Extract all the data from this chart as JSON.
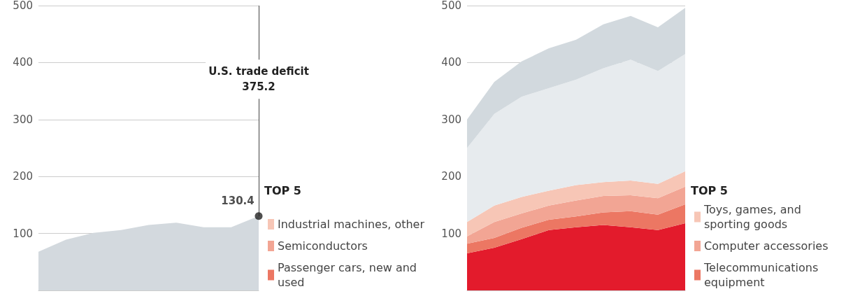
{
  "chart_data": [
    {
      "type": "area",
      "categories": [
        null,
        null,
        null,
        null,
        null,
        null,
        null,
        null,
        null
      ],
      "stacked": true,
      "ylim": [
        0,
        500
      ],
      "yticks": [
        100,
        200,
        300,
        400,
        500
      ],
      "grid": "y",
      "tick_labels": "y",
      "legend": "right",
      "legend_title": "TOP 5",
      "annotations": [
        "U.S. trade deficit\n375.2"
      ],
      "series": [
        {
          "color": "#d3d9de",
          "values": [
            68,
            89,
            101,
            106,
            115,
            119,
            111,
            111,
            130.4
          ]
        },
        {
          "name": "Passenger cars, new and used",
          "color": "#ec7763",
          "values": [
            null,
            null,
            null,
            null,
            null,
            null,
            null,
            null,
            null
          ]
        },
        {
          "name": "Semiconductors",
          "color": "#f2a594",
          "values": [
            null,
            null,
            null,
            null,
            null,
            null,
            null,
            null,
            null
          ]
        },
        {
          "name": "Industrial machines, other",
          "color": "#f7c6b6",
          "values": [
            null,
            null,
            null,
            null,
            null,
            null,
            null,
            null,
            null
          ]
        },
        {
          "type": "scatter",
          "color": "#222222",
          "marker": "circle",
          "values": [
            null,
            null,
            null,
            null,
            null,
            null,
            null,
            null,
            130.4
          ],
          "value_labels": [
            null,
            null,
            null,
            null,
            null,
            null,
            null,
            null,
            "130.4"
          ]
        }
      ]
    },
    {
      "type": "area",
      "categories": [
        null,
        null,
        null,
        null,
        null,
        null,
        null,
        null,
        null
      ],
      "stacked": true,
      "ylim": [
        0,
        500
      ],
      "yticks": [
        100,
        200,
        300,
        400,
        500
      ],
      "grid": "y",
      "tick_labels": "y",
      "legend": "right",
      "legend_title": "TOP 5",
      "series": [
        {
          "color": "#e31b2c",
          "values": [
            65,
            75,
            90,
            106,
            111,
            115,
            111,
            106,
            118
          ]
        },
        {
          "name": "Telecommunications equipment",
          "color": "#ec7763",
          "values": [
            17,
            17,
            20,
            18,
            19,
            22,
            28,
            27,
            33
          ]
        },
        {
          "name": "Computer accessories",
          "color": "#f2a594",
          "values": [
            13,
            28,
            25,
            25,
            28,
            29,
            28,
            29,
            31
          ]
        },
        {
          "name": "Toys, games, and sporting goods",
          "color": "#f7c6b6",
          "values": [
            25,
            29,
            29,
            26,
            27,
            24,
            26,
            25,
            27
          ]
        },
        {
          "color": "#e7ebee",
          "values": [
            130,
            161,
            176,
            180,
            185,
            200,
            212,
            198,
            206
          ]
        },
        {
          "color": "#d2d9de",
          "values": [
            50,
            56,
            62,
            70,
            70,
            77,
            77,
            77,
            81
          ]
        }
      ]
    }
  ]
}
